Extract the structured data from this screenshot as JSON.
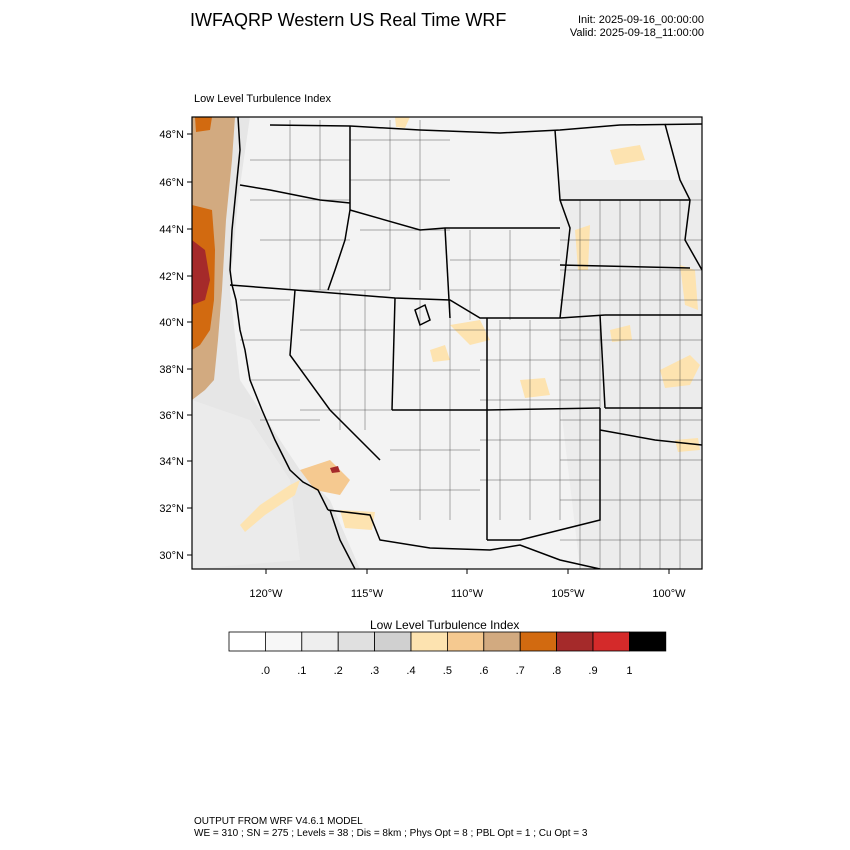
{
  "header": {
    "title": "IWFAQRP Western US Real Time WRF",
    "init": "Init: 2025-09-16_00:00:00",
    "valid": "Valid: 2025-09-18_11:00:00"
  },
  "plot": {
    "title": "Low Level Turbulence Index",
    "lat_labels": [
      "48°N",
      "46°N",
      "44°N",
      "42°N",
      "40°N",
      "38°N",
      "36°N",
      "34°N",
      "32°N",
      "30°N"
    ],
    "lon_labels": [
      "120°W",
      "115°W",
      "110°W",
      "105°W",
      "100°W"
    ]
  },
  "colorbar": {
    "title": "Low Level Turbulence Index",
    "labels": [
      ".0",
      ".1",
      ".2",
      ".3",
      ".4",
      ".5",
      ".6",
      ".7",
      ".8",
      ".9",
      "1"
    ],
    "colors": [
      "#ffffff",
      "#f7f7f7",
      "#eeeeee",
      "#e0e0e0",
      "#d0d0d0",
      "#fde3b0",
      "#f5c990",
      "#d2aa80",
      "#d26a10",
      "#a52a2a",
      "#d42a2a",
      "#000000"
    ]
  },
  "footer": {
    "line1": "OUTPUT FROM WRF V4.6.1 MODEL",
    "line2": "WE = 310 ; SN = 275 ; Levels = 38 ; Dis = 8km ; Phys Opt = 8 ; PBL Opt = 1 ; Cu Opt = 3"
  }
}
